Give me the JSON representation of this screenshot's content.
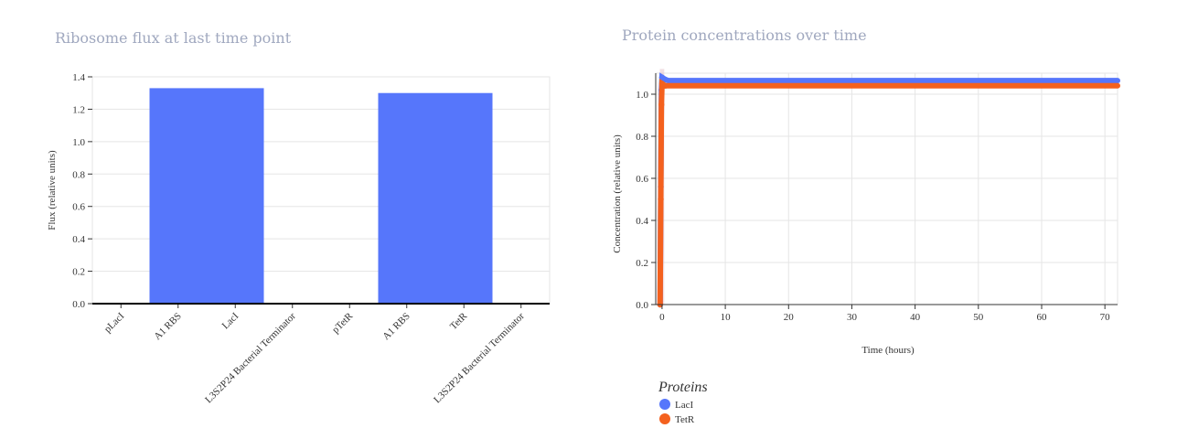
{
  "left_chart": {
    "title": "Ribosome flux at last time point",
    "chart_data": {
      "type": "bar",
      "title": "Ribosome flux at last time point",
      "categories": [
        "pLacI",
        "A1 RBS",
        "LacI",
        "L3S2P24 Bacterial Terminator",
        "pTetR",
        "A1 RBS",
        "TetR",
        "L3S2P24 Bacterial Terminator"
      ],
      "values": [
        0,
        1.33,
        1.33,
        0,
        0,
        1.3,
        1.3,
        0
      ],
      "xlabel": "",
      "ylabel": "Flux (relative units)",
      "ylim": [
        0,
        1.4
      ],
      "yticks": [
        0.0,
        0.2,
        0.4,
        0.6,
        0.8,
        1.0,
        1.2,
        1.4
      ],
      "grid": true,
      "bar_color": "#5676fb"
    }
  },
  "right_chart": {
    "title": "Protein concentrations over time",
    "chart_data": {
      "type": "scatter",
      "title": "Protein concentrations over time",
      "xlabel": "Time (hours)",
      "ylabel": "Concentration (relative units)",
      "xlim": [
        -1,
        72
      ],
      "ylim": [
        0,
        1.1
      ],
      "xticks": [
        0,
        10,
        20,
        30,
        40,
        50,
        60,
        70
      ],
      "yticks": [
        0.0,
        0.2,
        0.4,
        0.6,
        0.8,
        1.0
      ],
      "grid": true,
      "legend": {
        "title": "Proteins",
        "placement": "bottom-left"
      },
      "series": [
        {
          "name": "LacI",
          "color": "#5676fb",
          "x": [
            -0.3,
            -0.2,
            -0.1,
            0,
            0.5,
            1,
            2,
            3,
            5,
            10,
            20,
            30,
            40,
            50,
            60,
            70,
            72
          ],
          "y": [
            0,
            0.56,
            1.02,
            1.08,
            1.07,
            1.065,
            1.065,
            1.065,
            1.065,
            1.065,
            1.065,
            1.065,
            1.065,
            1.065,
            1.065,
            1.065,
            1.065
          ]
        },
        {
          "name": "TetR",
          "color": "#f4611e",
          "x": [
            -0.3,
            -0.2,
            -0.1,
            0,
            0.5,
            1,
            2,
            3,
            5,
            10,
            20,
            30,
            40,
            50,
            60,
            70,
            72
          ],
          "y": [
            0,
            0.5,
            0.95,
            1.05,
            1.04,
            1.04,
            1.04,
            1.04,
            1.04,
            1.04,
            1.04,
            1.04,
            1.04,
            1.04,
            1.04,
            1.04,
            1.04
          ]
        }
      ]
    }
  }
}
